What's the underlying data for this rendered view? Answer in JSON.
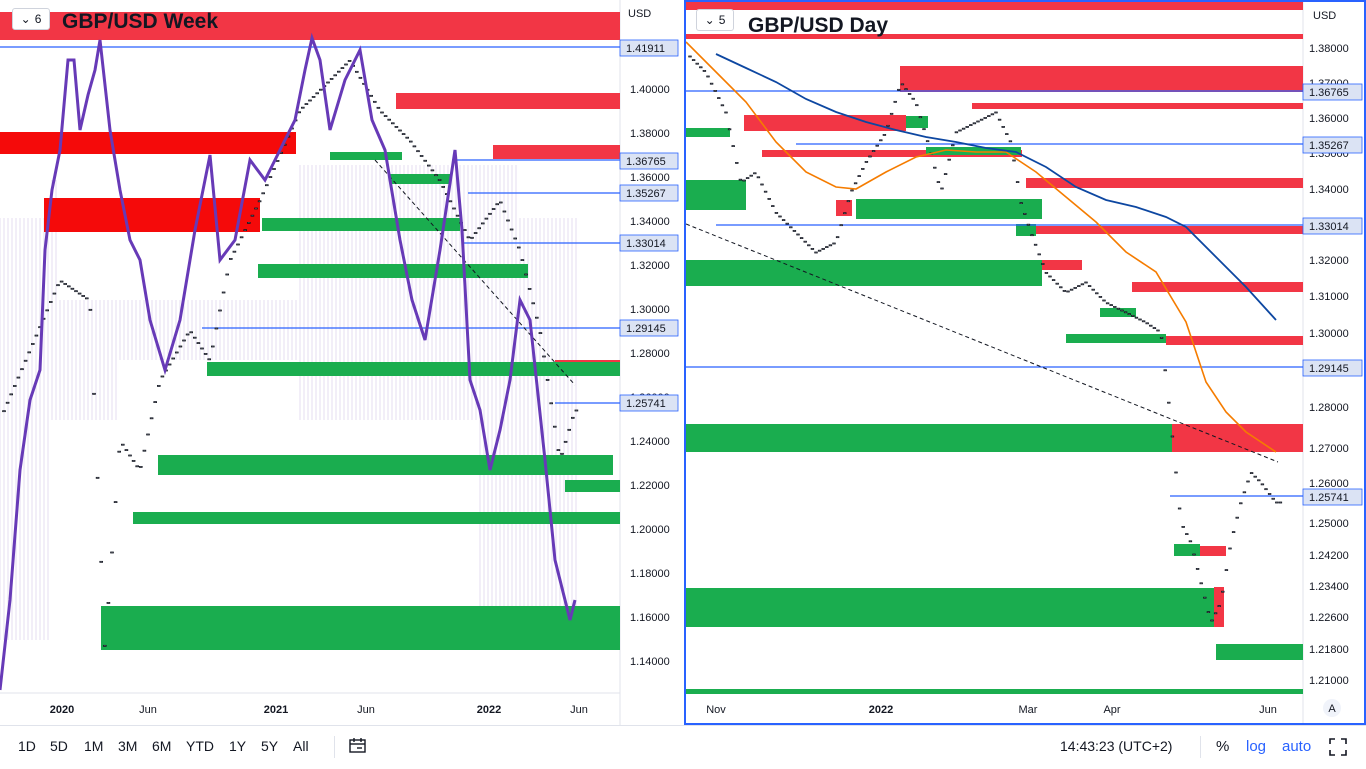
{
  "left_chart": {
    "title": "GBP/USD Week",
    "layout_number": "6",
    "currency": "USD",
    "y_ticks": [
      "1.40000",
      "1.38000",
      "1.36000",
      "1.34000",
      "1.32000",
      "1.30000",
      "1.28000",
      "1.26000",
      "1.24000",
      "1.22000",
      "1.20000",
      "1.18000",
      "1.16000",
      "1.14000"
    ],
    "x_ticks": [
      "2020",
      "Jun",
      "2021",
      "Jun",
      "2022",
      "Jun"
    ],
    "price_labels": [
      "1.41911",
      "1.36765",
      "1.35267",
      "1.33014",
      "1.29145",
      "1.25741"
    ]
  },
  "right_chart": {
    "title": "GBP/USD Day",
    "layout_number": "5",
    "currency": "USD",
    "y_ticks": [
      "1.38000",
      "1.37000",
      "1.36000",
      "1.35000",
      "1.34000",
      "1.33000",
      "1.32000",
      "1.31000",
      "1.30000",
      "1.29000",
      "1.28000",
      "1.27000",
      "1.26000",
      "1.25000",
      "1.24200",
      "1.23400",
      "1.22600",
      "1.21800",
      "1.21000"
    ],
    "x_ticks": [
      "Nov",
      "2022",
      "Mar",
      "Apr",
      "Jun"
    ],
    "price_labels": [
      "1.36765",
      "1.35267",
      "1.33014",
      "1.29145",
      "1.25741"
    ],
    "auto_badge": "A"
  },
  "chart_data": [
    {
      "type": "candlestick",
      "title": "GBP/USD Week",
      "ylim": [
        1.135,
        1.42
      ],
      "y_ticks": [
        1.4,
        1.38,
        1.36,
        1.34,
        1.32,
        1.3,
        1.28,
        1.26,
        1.24,
        1.22,
        1.2,
        1.18,
        1.16,
        1.14
      ],
      "x_ticks": [
        "2020",
        "Jun",
        "2021",
        "Jun",
        "2022",
        "Jun"
      ],
      "horizontal_levels": [
        1.41911,
        1.36765,
        1.35267,
        1.33014,
        1.29145,
        1.25741
      ],
      "resistance_zones": [
        [
          1.395,
          1.402
        ],
        [
          1.362,
          1.372
        ],
        [
          1.365,
          1.375
        ],
        [
          1.333,
          1.348
        ],
        [
          1.268,
          1.275
        ]
      ],
      "support_zones": [
        [
          1.362,
          1.366
        ],
        [
          1.341,
          1.347
        ],
        [
          1.316,
          1.322
        ],
        [
          1.271,
          1.278
        ],
        [
          1.225,
          1.234
        ],
        [
          1.215,
          1.221
        ],
        [
          1.202,
          1.207
        ],
        [
          1.145,
          1.165
        ]
      ],
      "overlay_indicator": "purple line"
    },
    {
      "type": "candlestick",
      "title": "GBP/USD Day",
      "ylim": [
        1.205,
        1.384
      ],
      "y_ticks": [
        1.38,
        1.37,
        1.36,
        1.35,
        1.34,
        1.33,
        1.32,
        1.31,
        1.3,
        1.29,
        1.28,
        1.27,
        1.26,
        1.25,
        1.242,
        1.234,
        1.226,
        1.218,
        1.21
      ],
      "x_ticks": [
        "Nov",
        "2022",
        "Mar",
        "Apr",
        "Jun"
      ],
      "horizontal_levels": [
        1.36765,
        1.35267,
        1.33014,
        1.29145,
        1.25741
      ],
      "moving_averages": [
        {
          "color": "#f57c00"
        },
        {
          "color": "#0d47a1"
        }
      ],
      "resistance_zones": [
        [
          1.366,
          1.374
        ],
        [
          1.361,
          1.363
        ],
        [
          1.341,
          1.343
        ],
        [
          1.329,
          1.331
        ],
        [
          1.311,
          1.314
        ],
        [
          1.299,
          1.301
        ],
        [
          1.269,
          1.276
        ],
        [
          1.241,
          1.244
        ]
      ],
      "support_zones": [
        [
          1.345,
          1.347
        ],
        [
          1.338,
          1.343
        ],
        [
          1.313,
          1.32
        ],
        [
          1.3,
          1.302
        ],
        [
          1.269,
          1.276
        ],
        [
          1.24,
          1.244
        ],
        [
          1.221,
          1.232
        ],
        [
          1.216,
          1.219
        ]
      ]
    }
  ],
  "bottom_bar": {
    "timeframes": [
      "1D",
      "5D",
      "1M",
      "3M",
      "6M",
      "YTD",
      "1Y",
      "5Y",
      "All"
    ],
    "time": "14:43:23 (UTC+2)",
    "percent": "%",
    "log": "log",
    "auto": "auto"
  },
  "colors": {
    "support": "#1aad4f",
    "resistance": "#f23645",
    "price_line": "#2962ff",
    "indicator": "#673ab7",
    "ema_fast": "#f57c00",
    "ema_slow": "#0d47a1"
  }
}
